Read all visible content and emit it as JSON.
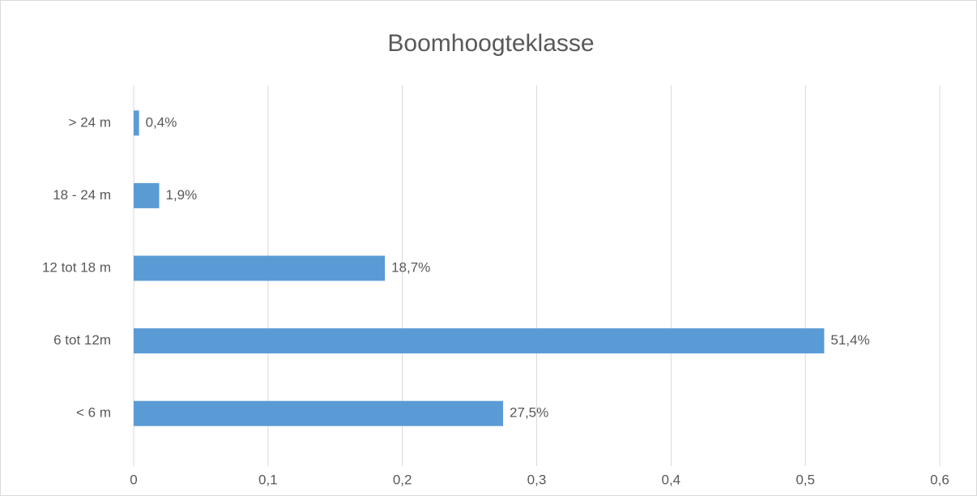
{
  "chart_data": {
    "type": "barh",
    "title": "Boomhoogteklasse",
    "categories": [
      "> 24 m",
      "18 - 24 m",
      "12 tot 18 m",
      "6 tot 12m",
      "< 6 m"
    ],
    "values": [
      0.004,
      0.019,
      0.187,
      0.514,
      0.275
    ],
    "value_labels": [
      "0,4%",
      "1,9%",
      "18,7%",
      "51,4%",
      "27,5%"
    ],
    "color": "#5b9bd5",
    "xlim": [
      0,
      0.6
    ],
    "xticks": [
      0,
      {
        "value": 0.1,
        "label": "0,1"
      },
      {
        "value": 0.2,
        "label": "0,2"
      },
      {
        "value": 0.3,
        "label": "0,3"
      },
      {
        "value": 0.4,
        "label": "0,4"
      },
      {
        "value": 0.5,
        "label": "0,5"
      },
      {
        "value": 0.6,
        "label": "0,6"
      }
    ],
    "grid": true
  }
}
